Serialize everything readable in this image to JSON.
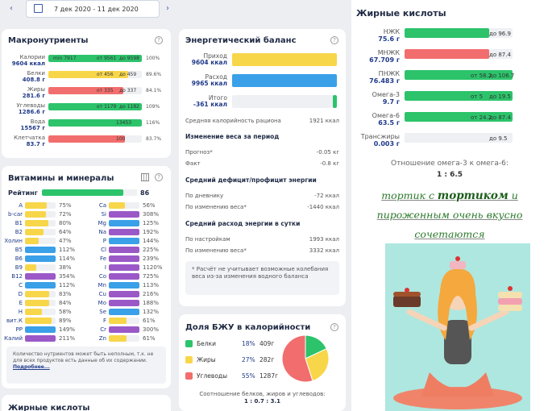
{
  "date_range": "7 дек 2020 - 11 дек 2020",
  "colors": {
    "green": "#2cc36b",
    "yellow": "#f7d64a",
    "red": "#f26d6d",
    "blue": "#3aa0e8",
    "purple": "#9b59c7"
  },
  "macro": {
    "title": "Макронутриенты",
    "rows": [
      {
        "name": "Калории",
        "value": "9604 ккал",
        "min": "min 7917",
        "from": "от 9561",
        "to": "до 9598",
        "pct": "100%",
        "fill": 1.0,
        "color": "green"
      },
      {
        "name": "Белки",
        "value": "408.8 г",
        "from": "от 456",
        "to": "до 459",
        "pct": "89.6%",
        "fill": 0.85,
        "color": "yellow"
      },
      {
        "name": "Жиры",
        "value": "281.6 г",
        "from": "от 335",
        "to": "до 337",
        "pct": "84.1%",
        "fill": 0.8,
        "color": "red"
      },
      {
        "name": "Углеводы",
        "value": "1286.6 г",
        "from": "от 1179",
        "to": "до 1182",
        "pct": "109%",
        "fill": 1.0,
        "color": "green"
      },
      {
        "name": "Вода",
        "value": "15567 г",
        "mark": "13453",
        "pct": "116%",
        "fill": 1.0,
        "color": "green"
      },
      {
        "name": "Клетчатка",
        "value": "83.7 г",
        "mark": "100",
        "pct": "83.7%",
        "fill": 0.82,
        "color": "red"
      }
    ]
  },
  "vitamins": {
    "title": "Витамины и минералы",
    "rating_label": "Рейтинг",
    "rating": "86",
    "rating_fill": 0.86,
    "left": [
      {
        "name": "A",
        "pct": "75%",
        "f": 0.7,
        "c": "yellow"
      },
      {
        "name": "b-car",
        "pct": "72%",
        "f": 0.68,
        "c": "yellow"
      },
      {
        "name": "B1",
        "pct": "80%",
        "f": 0.76,
        "c": "yellow"
      },
      {
        "name": "B2",
        "pct": "64%",
        "f": 0.6,
        "c": "yellow"
      },
      {
        "name": "Холин",
        "pct": "47%",
        "f": 0.45,
        "c": "yellow"
      },
      {
        "name": "B5",
        "pct": "112%",
        "f": 1.0,
        "c": "blue"
      },
      {
        "name": "B6",
        "pct": "114%",
        "f": 1.0,
        "c": "blue"
      },
      {
        "name": "B9",
        "pct": "38%",
        "f": 0.36,
        "c": "yellow"
      },
      {
        "name": "B12",
        "pct": "354%",
        "f": 1.0,
        "c": "purple"
      },
      {
        "name": "C",
        "pct": "112%",
        "f": 1.0,
        "c": "blue"
      },
      {
        "name": "D",
        "pct": "83%",
        "f": 0.8,
        "c": "yellow"
      },
      {
        "name": "E",
        "pct": "84%",
        "f": 0.8,
        "c": "yellow"
      },
      {
        "name": "H",
        "pct": "58%",
        "f": 0.55,
        "c": "yellow"
      },
      {
        "name": "вит.К",
        "pct": "89%",
        "f": 0.86,
        "c": "yellow"
      },
      {
        "name": "PP",
        "pct": "149%",
        "f": 1.0,
        "c": "blue"
      },
      {
        "name": "Калий",
        "pct": "211%",
        "f": 1.0,
        "c": "purple"
      }
    ],
    "right": [
      {
        "name": "Ca",
        "pct": "56%",
        "f": 0.53,
        "c": "yellow"
      },
      {
        "name": "Si",
        "pct": "308%",
        "f": 1.0,
        "c": "purple"
      },
      {
        "name": "Mg",
        "pct": "125%",
        "f": 1.0,
        "c": "blue"
      },
      {
        "name": "Na",
        "pct": "192%",
        "f": 1.0,
        "c": "purple"
      },
      {
        "name": "P",
        "pct": "144%",
        "f": 1.0,
        "c": "blue"
      },
      {
        "name": "Cl",
        "pct": "225%",
        "f": 1.0,
        "c": "purple"
      },
      {
        "name": "Fe",
        "pct": "239%",
        "f": 1.0,
        "c": "purple"
      },
      {
        "name": "I",
        "pct": "1120%",
        "f": 1.0,
        "c": "purple"
      },
      {
        "name": "Co",
        "pct": "725%",
        "f": 1.0,
        "c": "purple"
      },
      {
        "name": "Mn",
        "pct": "113%",
        "f": 1.0,
        "c": "blue"
      },
      {
        "name": "Cu",
        "pct": "216%",
        "f": 1.0,
        "c": "purple"
      },
      {
        "name": "Mo",
        "pct": "188%",
        "f": 1.0,
        "c": "purple"
      },
      {
        "name": "Se",
        "pct": "132%",
        "f": 1.0,
        "c": "blue"
      },
      {
        "name": "F",
        "pct": "61%",
        "f": 0.58,
        "c": "yellow"
      },
      {
        "name": "Cr",
        "pct": "300%",
        "f": 1.0,
        "c": "purple"
      },
      {
        "name": "Zn",
        "pct": "61%",
        "f": 0.58,
        "c": "yellow"
      }
    ],
    "note": "Количество нутриентов может быть неполным, т.к. не для всех продуктов есть данные об их содержании.",
    "more": "Подробнее..."
  },
  "fat_bottom_title": "Жирные кислоты",
  "energy": {
    "title": "Энергетический баланс",
    "intake_label": "Приход",
    "intake": "9604 ккал",
    "expense_label": "Расход",
    "expense": "9965 ккал",
    "total_label": "Итого",
    "total": "-361 ккал",
    "avg_label": "Средняя калорийность рациона",
    "avg": "1921 ккал",
    "weight_title": "Изменение веса за период",
    "forecast_label": "Прогноз*",
    "forecast": "-0.05 кг",
    "fact_label": "Факт",
    "fact": "-0.8 кг",
    "deficit_title": "Средний дефицит/профицит энергии",
    "by_diary_label": "По дневнику",
    "by_diary": "-72 ккал",
    "by_weight_label": "По изменению веса*",
    "by_weight": "-1440 ккал",
    "avg_exp_title": "Средний расход энергии в сутки",
    "by_settings_label": "По настройкам",
    "by_settings": "1993 ккал",
    "by_weight2_label": "По изменению веса*",
    "by_weight2": "3332 ккал",
    "note": "* Расчёт не учитывает возможные колебания веса из-за изменения водного баланса"
  },
  "bju": {
    "title": "Доля БЖУ в калорийности",
    "rows": [
      {
        "name": "Белки",
        "pct": "18%",
        "g": "409г",
        "color": "green"
      },
      {
        "name": "Жиры",
        "pct": "27%",
        "g": "282г",
        "color": "yellow"
      },
      {
        "name": "Углеводы",
        "pct": "55%",
        "g": "1287г",
        "color": "red"
      }
    ],
    "ratio_label": "Соотношение белков, жиров и углеводов:",
    "ratio": "1 : 0.7 : 3.1",
    "chart_data": {
      "type": "pie",
      "categories": [
        "Белки",
        "Жиры",
        "Углеводы"
      ],
      "values": [
        18,
        27,
        55
      ]
    }
  },
  "fatty": {
    "title": "Жирные кислоты",
    "rows": [
      {
        "name": "НЖК",
        "value": "75.6 г",
        "to": "до 96.9",
        "fill": 0.78,
        "color": "green"
      },
      {
        "name": "МНЖК",
        "value": "67.709 г",
        "to": "до 87.4",
        "fill": 0.78,
        "color": "red"
      },
      {
        "name": "ПНЖК",
        "value": "76.483 г",
        "from": "от 58.2",
        "to": "до 106.7",
        "fill": 1.0,
        "color": "green"
      },
      {
        "name": "Омега-3",
        "value": "9.7 г",
        "from": "от 5",
        "to": "до 19.5",
        "fill": 1.0,
        "color": "green"
      },
      {
        "name": "Омега-6",
        "value": "63.5 г",
        "from": "от 24.2",
        "to": "до 87.4",
        "fill": 1.0,
        "color": "green"
      },
      {
        "name": "Трансжиры",
        "value": "0.003 г",
        "to": "до 9.5",
        "fill": 0.0,
        "color": "green"
      }
    ],
    "ratio_label": "Отношение омега-3 к омега-6:",
    "ratio": "1 : 6.5"
  },
  "handwriting": {
    "line1a": "тортик с ",
    "line1b": "тортиком",
    "line1c": " и",
    "line2": "пироженным очень вкусно",
    "line3": "сочетаются"
  }
}
